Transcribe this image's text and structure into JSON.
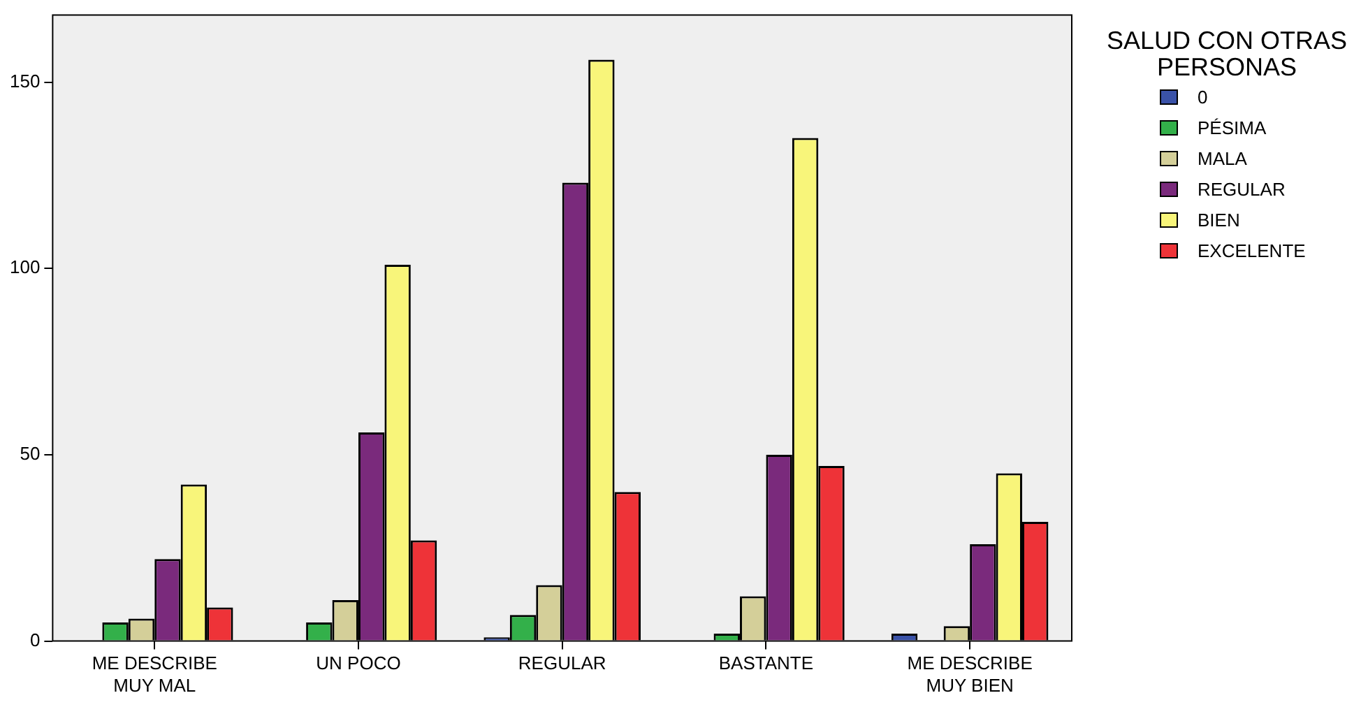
{
  "chart_data": {
    "type": "bar",
    "legend_title": "SALUD CON OTRAS PERSONAS",
    "legend": "right",
    "grid": false,
    "categories": [
      "ME DESCRIBE MUY MAL",
      "UN POCO",
      "REGULAR",
      "BASTANTE",
      "ME DESCRIBE MUY BIEN"
    ],
    "ylim": [
      0,
      168
    ],
    "yticks": [
      0,
      50,
      100,
      150
    ],
    "series": [
      {
        "name": "0",
        "color": "#3a52a8",
        "values": [
          null,
          null,
          1,
          null,
          2
        ]
      },
      {
        "name": "PÉSIMA",
        "color": "#33b04a",
        "values": [
          5,
          5,
          7,
          2,
          null
        ]
      },
      {
        "name": "MALA",
        "color": "#d4cf99",
        "values": [
          6,
          11,
          15,
          12,
          4
        ]
      },
      {
        "name": "REGULAR",
        "color": "#7a2a7c",
        "values": [
          22,
          56,
          123,
          50,
          26
        ]
      },
      {
        "name": "BIEN",
        "color": "#f8f57a",
        "values": [
          42,
          101,
          156,
          135,
          45
        ]
      },
      {
        "name": "EXCELENTE",
        "color": "#ee3338",
        "values": [
          9,
          27,
          40,
          47,
          32
        ]
      }
    ]
  }
}
